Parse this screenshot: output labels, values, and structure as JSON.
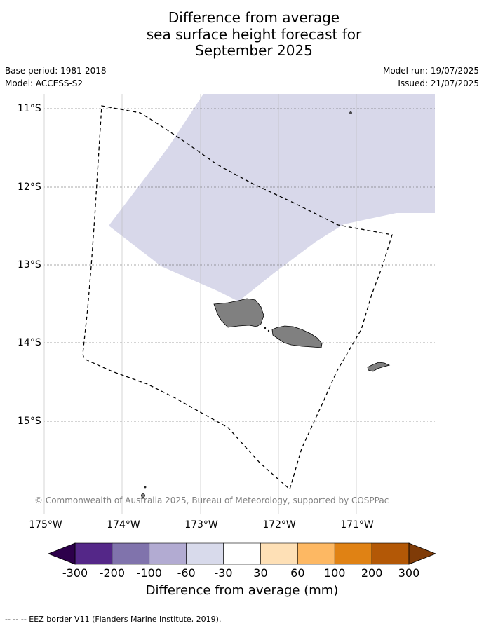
{
  "title": {
    "line1": "Difference from average",
    "line2": "sea surface height forecast for",
    "line3": "September 2025"
  },
  "meta": {
    "base_period": "Base period: 1981-2018",
    "model": "Model: ACCESS-S2",
    "model_run": "Model run: 19/07/2025",
    "issued": "Issued: 21/07/2025"
  },
  "map": {
    "latitude_labels": [
      "11°S",
      "12°S",
      "13°S",
      "14°S",
      "15°S"
    ],
    "longitude_labels": [
      "175°W",
      "174°W",
      "173°W",
      "172°W",
      "171°W"
    ],
    "anomaly_fill_color": "#d8d8ea",
    "land_color": "#808080",
    "copyright": "© Commonwealth of Australia 2025, Bureau of Meteorology, supported by COSPPac"
  },
  "colorbar": {
    "ticks": [
      "-300",
      "-200",
      "-100",
      "-60",
      "-30",
      "30",
      "60",
      "100",
      "200",
      "300"
    ],
    "colors": [
      "#2d004b",
      "#542788",
      "#8073ac",
      "#b2abd2",
      "#d8daeb",
      "#ffffff",
      "#fee0b6",
      "#fdb863",
      "#e08214",
      "#b35806",
      "#7f3b08"
    ],
    "label": "Difference from average (mm)"
  },
  "footer": {
    "legend_text": "--  --  -- EEZ border V11 (Flanders Marine Institute, 2019)."
  }
}
